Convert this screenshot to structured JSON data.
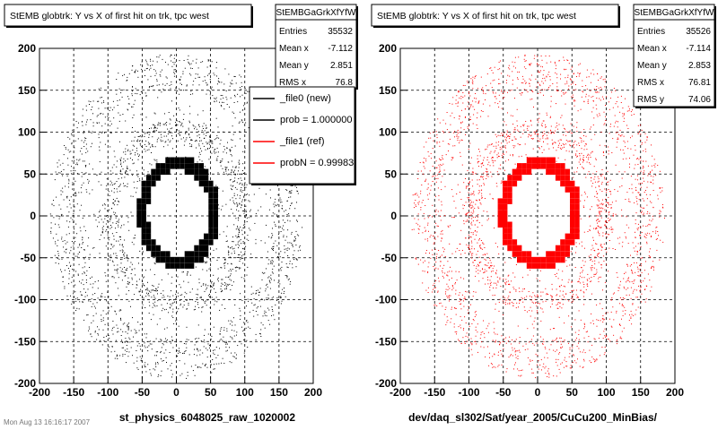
{
  "chart_data": [
    {
      "type": "scatter",
      "title": "StEMB globtrk: Y vs X of first hit on trk, tpc west",
      "xlabel": "st_physics_6048025_raw_1020002",
      "ylabel": "",
      "xlim": [
        -200,
        200
      ],
      "ylim": [
        -200,
        200
      ],
      "x_ticks": [
        -200,
        -150,
        -100,
        -50,
        0,
        50,
        100,
        150,
        200
      ],
      "y_ticks": [
        -200,
        -150,
        -100,
        -50,
        0,
        50,
        100,
        150,
        200
      ],
      "grid": true,
      "marker_color": "#000000",
      "stats_box": {
        "name": "StEMBGaGrkXfYfW",
        "rows": [
          {
            "label": "Entries",
            "value": "35532"
          },
          {
            "label": "Mean x",
            "value": "-7.112"
          },
          {
            "label": "Mean y",
            "value": "2.851"
          },
          {
            "label": "RMS x",
            "value": "76.8"
          }
        ]
      },
      "legend": {
        "placement": "top-right",
        "entries": [
          {
            "label": "_file0 (new)",
            "color": "#000000"
          },
          {
            "label": "prob = 1.000000",
            "color": "#000000"
          },
          {
            "label": "_file1 (ref)",
            "color": "#ff0000"
          },
          {
            "label": "probN = 0.99983",
            "color": "#ff0000"
          }
        ]
      },
      "distribution": {
        "inner_ring_radius": [
          45,
          60
        ],
        "middle_ring_radius": [
          85,
          110
        ],
        "outer_ring_radius": [
          140,
          185
        ]
      }
    },
    {
      "type": "scatter",
      "title": "StEMB globtrk: Y vs X of first hit on trk, tpc west",
      "xlabel": "dev/daq_sl302/Sat/year_2005/CuCu200_MinBias/",
      "ylabel": "",
      "xlim": [
        -200,
        200
      ],
      "ylim": [
        -200,
        200
      ],
      "x_ticks": [
        -200,
        -150,
        -100,
        -50,
        0,
        50,
        100,
        150,
        200
      ],
      "y_ticks": [
        -200,
        -150,
        -100,
        -50,
        0,
        50,
        100,
        150,
        200
      ],
      "grid": true,
      "marker_color": "#ff0000",
      "stats_box": {
        "name": "StEMBGaGrkXfYfW",
        "rows": [
          {
            "label": "Entries",
            "value": "35526"
          },
          {
            "label": "Mean x",
            "value": "-7.114"
          },
          {
            "label": "Mean y",
            "value": "2.853"
          },
          {
            "label": "RMS x",
            "value": "76.81"
          },
          {
            "label": "RMS y",
            "value": "74.06"
          }
        ]
      },
      "distribution": {
        "inner_ring_radius": [
          45,
          60
        ],
        "middle_ring_radius": [
          85,
          110
        ],
        "outer_ring_radius": [
          140,
          185
        ]
      }
    }
  ],
  "footer": "Mon Aug 13 16:16:17 2007"
}
